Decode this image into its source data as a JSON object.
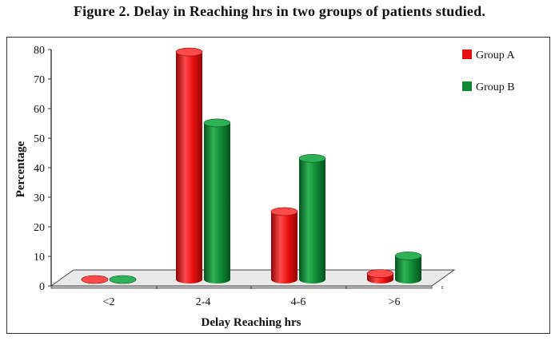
{
  "figure_title": "Figure 2. Delay in Reaching hrs in two groups of patients studied.",
  "colors": {
    "group_a": "#e80e0e",
    "group_a_dark": "#8e0606",
    "group_a_light": "#ff4a4a",
    "group_b": "#0e8a35",
    "group_b_dark": "#05521d",
    "group_b_light": "#2fb257"
  },
  "chart_data": {
    "type": "bar",
    "title": "",
    "xlabel": "Delay Reaching hrs",
    "ylabel": "Percentage",
    "ylim": [
      0,
      80
    ],
    "yticks": [
      "0",
      "10",
      "20",
      "30",
      "40",
      "50",
      "60",
      "70",
      "80"
    ],
    "categories": [
      "<2",
      "2-4",
      "4-6",
      ">6"
    ],
    "series": [
      {
        "name": "Group A",
        "values": [
          0,
          77,
          23,
          2
        ]
      },
      {
        "name": "Group B",
        "values": [
          0,
          53,
          41,
          8
        ]
      }
    ],
    "legend_position": "top-right",
    "grid": false,
    "style": "3d-cylinder"
  }
}
